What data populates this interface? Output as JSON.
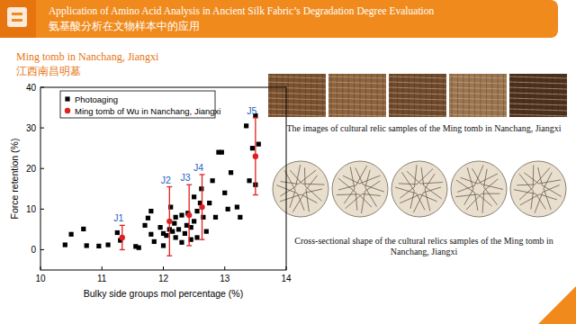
{
  "slide": {
    "title_en": "Application of Amino Acid Analysis in Ancient Silk Fabric’s Degradation Degree Evaluation",
    "title_zh": "氨基酸分析在文物样本中的应用",
    "section_en": "Ming tomb in Nanchang, Jiangxi",
    "section_zh": "江西南昌明墓",
    "caption_images": "The images of cultural relic samples of the Ming tomb in Nanchang, Jiangxi",
    "caption_cross_sections": "Cross-sectional shape of the cultural relics samples of the Ming tomb in Nanchang, Jiangxi"
  },
  "chart_data": {
    "type": "scatter",
    "x_label": "Bulky side groups mol percentage (%)",
    "y_label": "Force retention (%)",
    "xlim": [
      10,
      14
    ],
    "xticks": [
      10,
      11,
      12,
      13,
      14
    ],
    "ylim": [
      -5,
      40
    ],
    "yticks": [
      0,
      10,
      20,
      30,
      40
    ],
    "grid": false,
    "legend": "top-left",
    "series": [
      {
        "name": "Photoaging",
        "color": "#000000",
        "marker": "square",
        "x": [
          10.4,
          10.5,
          10.7,
          10.75,
          10.95,
          11.1,
          11.25,
          11.3,
          11.55,
          11.6,
          11.7,
          11.75,
          11.8,
          11.8,
          11.85,
          11.95,
          12.0,
          12.0,
          12.05,
          12.1,
          12.12,
          12.15,
          12.18,
          12.2,
          12.2,
          12.25,
          12.3,
          12.3,
          12.35,
          12.38,
          12.4,
          12.45,
          12.45,
          12.5,
          12.5,
          12.55,
          12.55,
          12.6,
          12.62,
          12.65,
          12.7,
          12.75,
          12.8,
          12.85,
          12.9,
          12.95,
          13.0,
          13.05,
          13.1,
          13.2,
          13.25,
          13.35,
          13.4,
          13.45,
          13.5,
          13.5,
          13.55
        ],
        "values": [
          1.2,
          3.8,
          5.1,
          1.0,
          0.9,
          1.2,
          4.2,
          2.3,
          0.8,
          0.5,
          6.0,
          7.8,
          9.5,
          3.8,
          2.0,
          5.5,
          1.0,
          4.0,
          3.5,
          5.0,
          10.5,
          4.5,
          6.5,
          3.0,
          8.0,
          5.0,
          1.8,
          8.5,
          4.0,
          6.0,
          9.0,
          5.5,
          2.5,
          7.0,
          13.0,
          9.5,
          3.0,
          11.5,
          15.0,
          8.0,
          4.5,
          11.5,
          17.0,
          8.0,
          24.0,
          24.0,
          14.0,
          10.0,
          19.0,
          10.5,
          8.0,
          30.5,
          17.0,
          25.0,
          33.0,
          16.0,
          26.0
        ]
      },
      {
        "name": "Ming tomb of Wu in Nanchang, Jiangxi",
        "color": "#e02020",
        "marker": "circle",
        "x": [
          11.33,
          12.1,
          12.42,
          12.63,
          13.5
        ],
        "values": [
          3.0,
          7.0,
          8.5,
          10.5,
          23.0
        ],
        "errors": [
          3.0,
          8.5,
          7.5,
          8.0,
          9.5
        ],
        "point_labels": [
          "J1",
          "J2",
          "J3",
          "J4",
          "J5"
        ]
      }
    ]
  }
}
